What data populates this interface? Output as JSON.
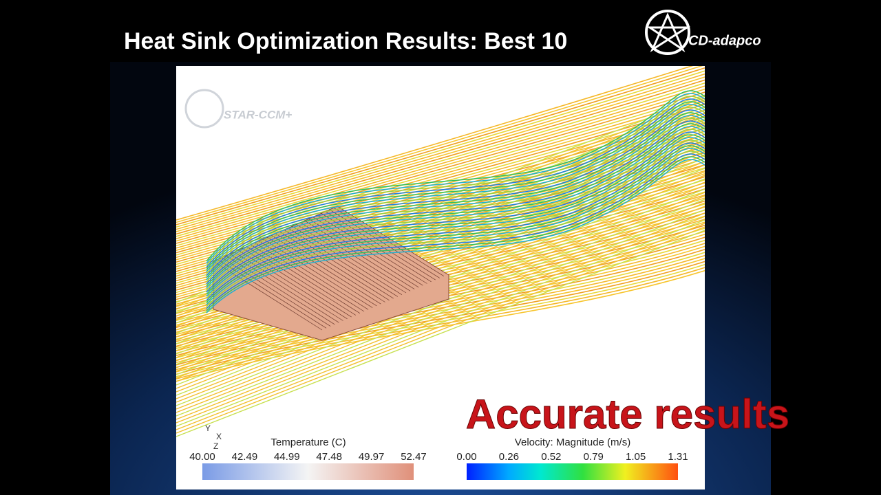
{
  "slide": {
    "title": "Heat Sink Optimization Results:  Best 10",
    "logo": "CD-adapco",
    "watermark": "STAR-CCM+",
    "axes": [
      "Y",
      "X",
      "Z"
    ],
    "temperature_legend": {
      "title": "Temperature (C)",
      "labels": [
        "40.00",
        "42.49",
        "44.99",
        "47.48",
        "49.97",
        "52.47"
      ]
    },
    "velocity_legend": {
      "title": "Velocity: Magnitude (m/s)",
      "labels": [
        "0.00",
        "0.26",
        "0.52",
        "0.79",
        "1.05",
        "1.31"
      ]
    },
    "overlay": "Accurate results"
  }
}
